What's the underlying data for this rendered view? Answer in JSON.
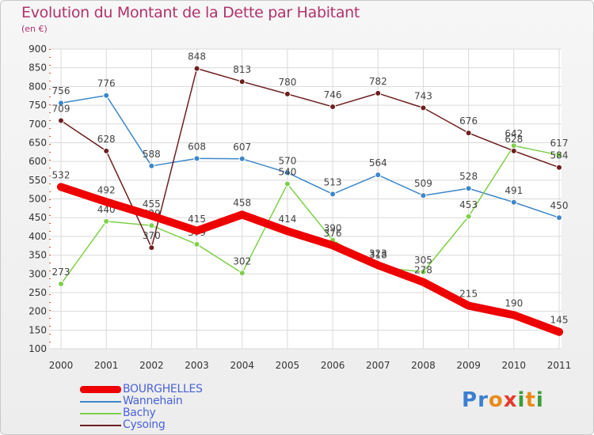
{
  "header": {
    "title": "Evolution du Montant de la Dette par Habitant",
    "subtitle": "(en €)"
  },
  "logo": {
    "text": "Proxiti",
    "letters": [
      {
        "ch": "P",
        "color": "#3a7fd0"
      },
      {
        "ch": "r",
        "color": "#3a7fd0"
      },
      {
        "ch": "o",
        "color": "#e88a1a"
      },
      {
        "ch": "x",
        "color": "#e53b2c"
      },
      {
        "ch": "i",
        "color": "#3a9d3a"
      },
      {
        "ch": "t",
        "color": "#e88a1a"
      },
      {
        "ch": "i",
        "color": "#3a9d3a"
      }
    ]
  },
  "chart_data": {
    "type": "line",
    "title": "Evolution du Montant de la Dette par Habitant",
    "subtitle": "(en €)",
    "x": [
      "2000",
      "2001",
      "2002",
      "2003",
      "2004",
      "2005",
      "2006",
      "2007",
      "2008",
      "2009",
      "2010",
      "2011"
    ],
    "ylim": [
      100,
      900
    ],
    "yticks": [
      100,
      150,
      200,
      250,
      300,
      350,
      400,
      450,
      500,
      550,
      600,
      650,
      700,
      750,
      800,
      850,
      900
    ],
    "grid": true,
    "legend": "bottom-left",
    "series": [
      {
        "name": "BOURGHELLES",
        "color": "#ee0000",
        "emphasis": true,
        "values": [
          532,
          492,
          455,
          415,
          458,
          414,
          376,
          323,
          278,
          215,
          190,
          145
        ]
      },
      {
        "name": "Wannehain",
        "color": "#3d87c8",
        "emphasis": false,
        "values": [
          756,
          776,
          588,
          608,
          607,
          570,
          513,
          564,
          509,
          528,
          491,
          450
        ]
      },
      {
        "name": "Bachy",
        "color": "#7ed04a",
        "emphasis": false,
        "values": [
          273,
          440,
          429,
          379,
          302,
          540,
          390,
          318,
          305,
          453,
          642,
          617
        ]
      },
      {
        "name": "Cysoing",
        "color": "#6e1f1f",
        "emphasis": false,
        "values": [
          709,
          628,
          370,
          848,
          813,
          780,
          746,
          782,
          743,
          676,
          628,
          584
        ]
      }
    ]
  }
}
